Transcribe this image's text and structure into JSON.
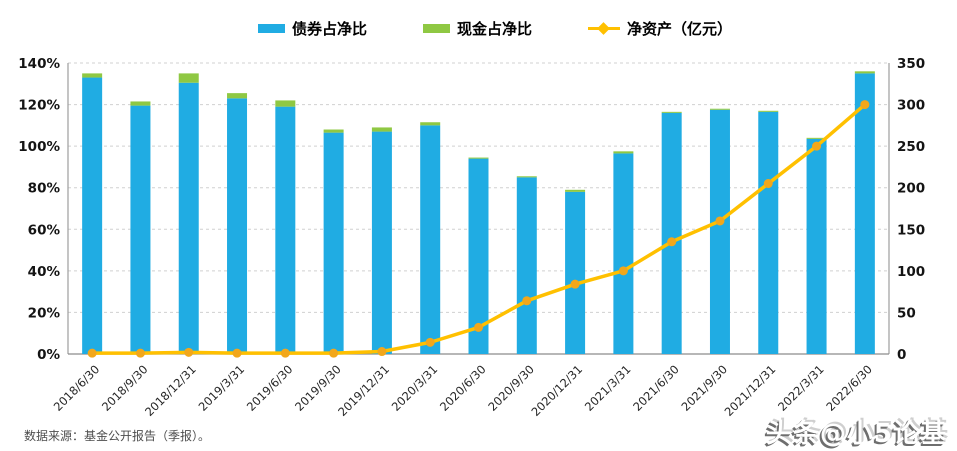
{
  "legend": {
    "items": [
      {
        "label": "债券占净比",
        "color": "#20ACE3",
        "marker": "square"
      },
      {
        "label": "现金占净比",
        "color": "#8FC843",
        "marker": "square"
      },
      {
        "label": "净资产（亿元）",
        "color": "#FFC000",
        "marker": "line-diamond"
      }
    ]
  },
  "chart_data": {
    "type": "combo",
    "categories": [
      "2018/6/30",
      "2018/9/30",
      "2018/12/31",
      "2019/3/31",
      "2019/6/30",
      "2019/9/30",
      "2019/12/31",
      "2020/3/31",
      "2020/6/30",
      "2020/9/30",
      "2020/12/31",
      "2021/3/31",
      "2021/6/30",
      "2021/9/30",
      "2021/12/31",
      "2022/3/31",
      "2022/6/30"
    ],
    "series": [
      {
        "name": "债券占净比",
        "type": "bar",
        "stack": "a",
        "axis": "left",
        "color": "#20ACE3",
        "values": [
          133,
          119.5,
          130.5,
          123,
          119,
          106.5,
          107,
          110,
          94,
          85,
          78,
          96.5,
          116,
          117.5,
          116.5,
          103.5,
          135
        ]
      },
      {
        "name": "现金占净比",
        "type": "bar",
        "stack": "a",
        "axis": "left",
        "color": "#8FC843",
        "values": [
          2,
          2,
          4.5,
          2.5,
          3,
          1.5,
          2,
          1.5,
          0.5,
          0.5,
          1,
          1,
          0.5,
          0.5,
          0.5,
          0.5,
          1
        ]
      },
      {
        "name": "净资产（亿元）",
        "type": "line",
        "axis": "right",
        "color": "#FFC000",
        "marker_color": "#F2A71B",
        "values": [
          1,
          1,
          2,
          1,
          1,
          1,
          3,
          14,
          32,
          64,
          84,
          100,
          135,
          160,
          205,
          250,
          300
        ]
      }
    ],
    "left_axis": {
      "ticks": [
        "0%",
        "20%",
        "40%",
        "60%",
        "80%",
        "100%",
        "120%",
        "140%"
      ],
      "min": 0,
      "max": 140
    },
    "right_axis": {
      "ticks": [
        "0",
        "50",
        "100",
        "150",
        "200",
        "250",
        "300",
        "350"
      ],
      "min": 0,
      "max": 350
    },
    "grid": "dashed-horizontal",
    "legend_position": "top",
    "grid_color": "#d0d0d0",
    "axis_line_color": "#9e9e9e"
  },
  "source_note": "数据来源：基金公开报告（季报）。",
  "watermark": "头条@小5论基"
}
